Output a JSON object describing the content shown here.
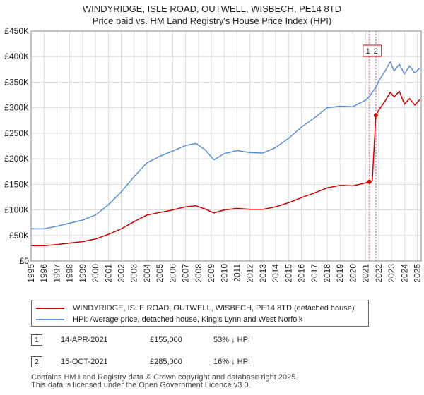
{
  "title_line1": "WINDYRIDGE, ISLE ROAD, OUTWELL, WISBECH, PE14 8TD",
  "title_line2": "Price paid vs. HM Land Registry's House Price Index (HPI)",
  "chart_data": {
    "type": "line",
    "title": "WINDYRIDGE, ISLE ROAD, OUTWELL, WISBECH, PE14 8TD",
    "xlabel": "",
    "ylabel": "",
    "xlim": [
      1995,
      2025.3
    ],
    "ylim": [
      0,
      450000
    ],
    "y_ticks": [
      0,
      50000,
      100000,
      150000,
      200000,
      250000,
      300000,
      350000,
      400000,
      450000
    ],
    "y_tick_labels": [
      "£0",
      "£50K",
      "£100K",
      "£150K",
      "£200K",
      "£250K",
      "£300K",
      "£350K",
      "£400K",
      "£450K"
    ],
    "x_ticks": [
      1995,
      1996,
      1997,
      1998,
      1999,
      2000,
      2001,
      2002,
      2003,
      2004,
      2005,
      2006,
      2007,
      2008,
      2009,
      2010,
      2011,
      2012,
      2013,
      2014,
      2015,
      2016,
      2017,
      2018,
      2019,
      2020,
      2021,
      2022,
      2023,
      2024,
      2025
    ],
    "grid": true,
    "series": [
      {
        "name": "WINDYRIDGE, ISLE ROAD, OUTWELL, WISBECH, PE14 8TD (detached house)",
        "color": "#cc0000",
        "x": [
          1995.0,
          1996.0,
          1997.0,
          1998.0,
          1999.0,
          2000.0,
          2001.0,
          2002.0,
          2003.0,
          2004.0,
          2005.0,
          2006.0,
          2007.0,
          2007.8,
          2008.5,
          2009.2,
          2010.0,
          2011.0,
          2012.0,
          2013.0,
          2014.0,
          2015.0,
          2016.0,
          2017.0,
          2018.0,
          2019.0,
          2020.0,
          2021.0,
          2021.28,
          2021.5,
          2021.78,
          2022.0,
          2022.5,
          2022.9,
          2023.2,
          2023.6,
          2024.0,
          2024.4,
          2024.8,
          2025.2
        ],
        "values": [
          30000,
          30000,
          32000,
          35000,
          38000,
          43000,
          52000,
          63000,
          77000,
          90000,
          95000,
          100000,
          106000,
          108000,
          102000,
          94000,
          100000,
          103000,
          101000,
          101000,
          106000,
          114000,
          124000,
          133000,
          143000,
          148000,
          147000,
          153000,
          155000,
          157000,
          285000,
          295000,
          313000,
          330000,
          321000,
          332000,
          307000,
          318000,
          305000,
          316000
        ]
      },
      {
        "name": "HPI: Average price, detached house, King's Lynn and West Norfolk",
        "color": "#5b8fd6",
        "x": [
          1995.0,
          1996.0,
          1997.0,
          1998.0,
          1999.0,
          2000.0,
          2001.0,
          2002.0,
          2003.0,
          2004.0,
          2005.0,
          2006.0,
          2007.0,
          2007.8,
          2008.5,
          2009.2,
          2010.0,
          2011.0,
          2012.0,
          2013.0,
          2014.0,
          2015.0,
          2016.0,
          2017.0,
          2018.0,
          2019.0,
          2020.0,
          2021.0,
          2021.28,
          2021.5,
          2021.78,
          2022.0,
          2022.5,
          2022.9,
          2023.2,
          2023.6,
          2024.0,
          2024.4,
          2024.8,
          2025.2
        ],
        "values": [
          63000,
          63000,
          68000,
          74000,
          80000,
          90000,
          110000,
          135000,
          165000,
          192000,
          205000,
          215000,
          226000,
          230000,
          218000,
          198000,
          210000,
          216000,
          212000,
          211000,
          222000,
          240000,
          262000,
          280000,
          300000,
          303000,
          302000,
          315000,
          322000,
          330000,
          340000,
          352000,
          372000,
          390000,
          372000,
          385000,
          366000,
          382000,
          368000,
          378000
        ]
      }
    ],
    "annotations": [
      {
        "label": "1",
        "x": 2021.28
      },
      {
        "label": "2",
        "x": 2021.78
      }
    ]
  },
  "legend": {
    "property_label": "WINDYRIDGE, ISLE ROAD, OUTWELL, WISBECH, PE14 8TD (detached house)",
    "hpi_label": "HPI: Average price, detached house, King's Lynn and West Norfolk",
    "property_color": "#cc0000",
    "hpi_color": "#5b8fd6"
  },
  "transactions": [
    {
      "num": "1",
      "date": "14-APR-2021",
      "price": "£155,000",
      "hpi": "53% ↓ HPI"
    },
    {
      "num": "2",
      "date": "15-OCT-2021",
      "price": "£285,000",
      "hpi": "16% ↓ HPI"
    }
  ],
  "footer": {
    "line1": "Contains HM Land Registry data © Crown copyright and database right 2025.",
    "line2": "This data is licensed under the Open Government Licence v3.0."
  }
}
